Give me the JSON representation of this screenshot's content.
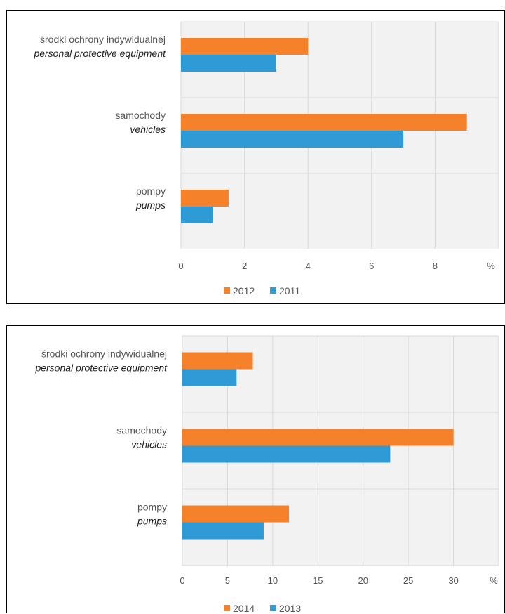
{
  "chart_data": [
    {
      "type": "bar",
      "orientation": "horizontal",
      "categories": [
        {
          "label_pl": "środki ochrony indywidualnej",
          "label_en": "personal protective equipment"
        },
        {
          "label_pl": "samochody",
          "label_en": "vehicles"
        },
        {
          "label_pl": "pompy",
          "label_en": "pumps"
        }
      ],
      "series": [
        {
          "name": "2012",
          "color": "#F5812A",
          "values": [
            4,
            9,
            1.5
          ]
        },
        {
          "name": "2011",
          "color": "#2E9BD6",
          "values": [
            3,
            7,
            1
          ]
        }
      ],
      "xlim": [
        0,
        10
      ],
      "ticks": [
        "0",
        "2",
        "4",
        "6",
        "8"
      ],
      "unit": "%",
      "grid": true,
      "legend_position": "bottom"
    },
    {
      "type": "bar",
      "orientation": "horizontal",
      "categories": [
        {
          "label_pl": "środki ochrony indywidualnej",
          "label_en": "personal protective equipment"
        },
        {
          "label_pl": "samochody",
          "label_en": "vehicles"
        },
        {
          "label_pl": "pompy",
          "label_en": "pumps"
        }
      ],
      "series": [
        {
          "name": "2014",
          "color": "#F5812A",
          "values": [
            7.8,
            30,
            11.8
          ]
        },
        {
          "name": "2013",
          "color": "#2E9BD6",
          "values": [
            6,
            23,
            9
          ]
        }
      ],
      "xlim": [
        0,
        35
      ],
      "ticks": [
        "0",
        "5",
        "10",
        "15",
        "20",
        "25",
        "30"
      ],
      "unit": "%",
      "grid": true,
      "legend_position": "bottom"
    }
  ]
}
